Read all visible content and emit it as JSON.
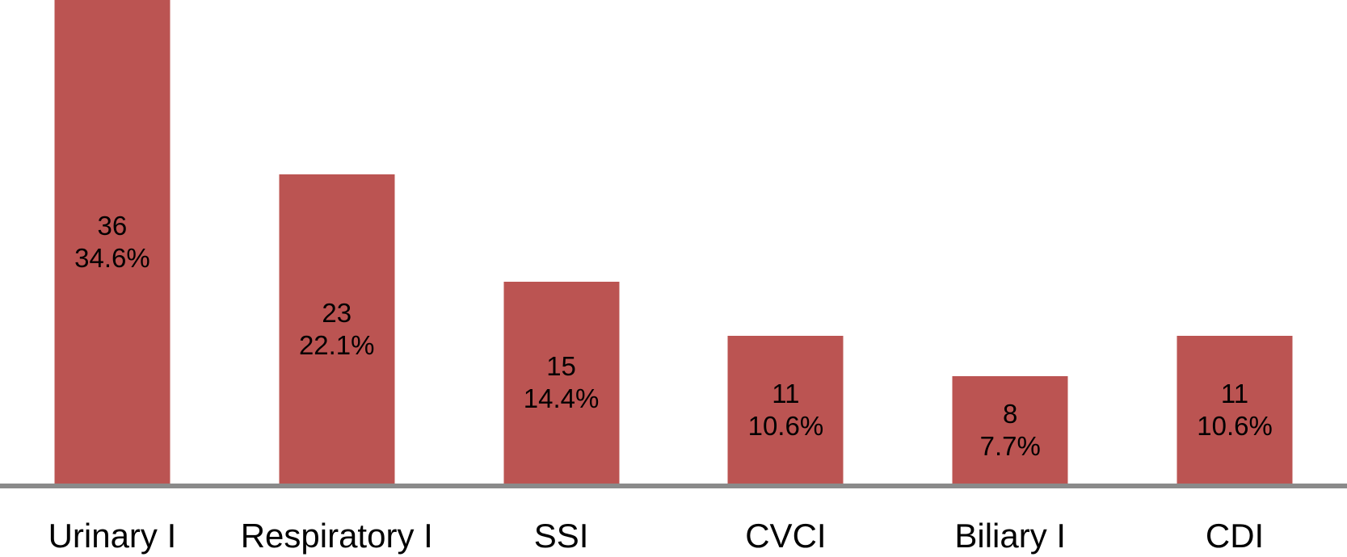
{
  "chart_data": {
    "type": "bar",
    "categories": [
      "Urinary I",
      "Respiratory I",
      "SSI",
      "CVCI",
      "Biliary I",
      "CDI"
    ],
    "values": [
      36,
      23,
      15,
      11,
      8,
      11
    ],
    "count_labels": [
      "36",
      "23",
      "15",
      "11",
      "8",
      "11"
    ],
    "percent_labels": [
      "34.6%",
      "22.1%",
      "14.4%",
      "10.6%",
      "7.7%",
      "10.6%"
    ],
    "title": "",
    "xlabel": "",
    "ylabel": "",
    "ylim": [
      0,
      36
    ],
    "grid": false,
    "legend": false,
    "bar_color": "#bb5452",
    "axis_line_color": "#8a8a8a",
    "label_color": "#000000"
  }
}
